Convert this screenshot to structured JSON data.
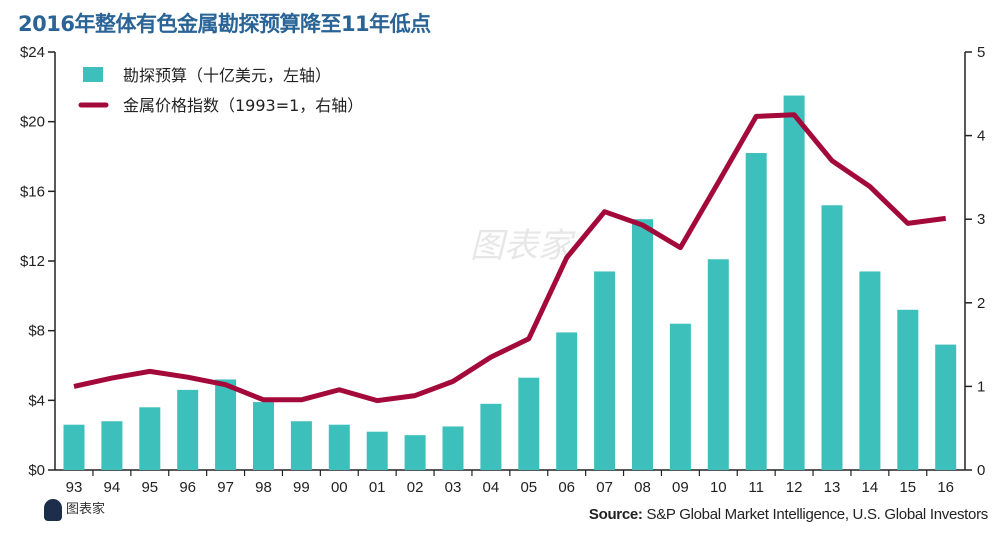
{
  "title": "2016年整体有色金属勘探预算降至11年低点",
  "source_label": "Source:",
  "source_text": " S&P Global Market Intelligence, U.S. Global Investors",
  "logo_text": "图表家",
  "watermark": "图表家",
  "colors": {
    "bar": "#3dbfbb",
    "line": "#a3093a",
    "title": "#2a6496"
  },
  "chart_data": {
    "type": "bar+line",
    "title": "2016年整体有色金属勘探预算降至11年低点",
    "categories": [
      "93",
      "94",
      "95",
      "96",
      "97",
      "98",
      "99",
      "00",
      "01",
      "02",
      "03",
      "04",
      "05",
      "06",
      "07",
      "08",
      "09",
      "10",
      "11",
      "12",
      "13",
      "14",
      "15",
      "16"
    ],
    "series": [
      {
        "name": "勘探预算（十亿美元，左轴）",
        "type": "bar",
        "axis": "left",
        "values": [
          2.6,
          2.8,
          3.6,
          4.6,
          5.2,
          3.9,
          2.8,
          2.6,
          2.2,
          2.0,
          2.5,
          3.8,
          5.3,
          7.9,
          11.4,
          14.4,
          8.4,
          12.1,
          18.2,
          21.5,
          15.2,
          11.4,
          9.2,
          7.2
        ]
      },
      {
        "name": "金属价格指数（1993=1，右轴）",
        "type": "line",
        "axis": "right",
        "values": [
          1.0,
          1.1,
          1.18,
          1.11,
          1.02,
          0.84,
          0.84,
          0.96,
          0.83,
          0.89,
          1.06,
          1.35,
          1.57,
          2.54,
          3.09,
          2.93,
          2.66,
          3.44,
          4.23,
          4.25,
          3.7,
          3.39,
          2.95,
          3.01
        ]
      }
    ],
    "y_left": {
      "range": [
        0,
        24
      ],
      "ticks": [
        "$0",
        "$4",
        "$8",
        "$12",
        "$16",
        "$20",
        "$24"
      ]
    },
    "y_right": {
      "range": [
        0,
        5
      ],
      "ticks": [
        "0",
        "1",
        "2",
        "3",
        "4",
        "5"
      ]
    },
    "grid": false,
    "legend_position": "top-left"
  }
}
